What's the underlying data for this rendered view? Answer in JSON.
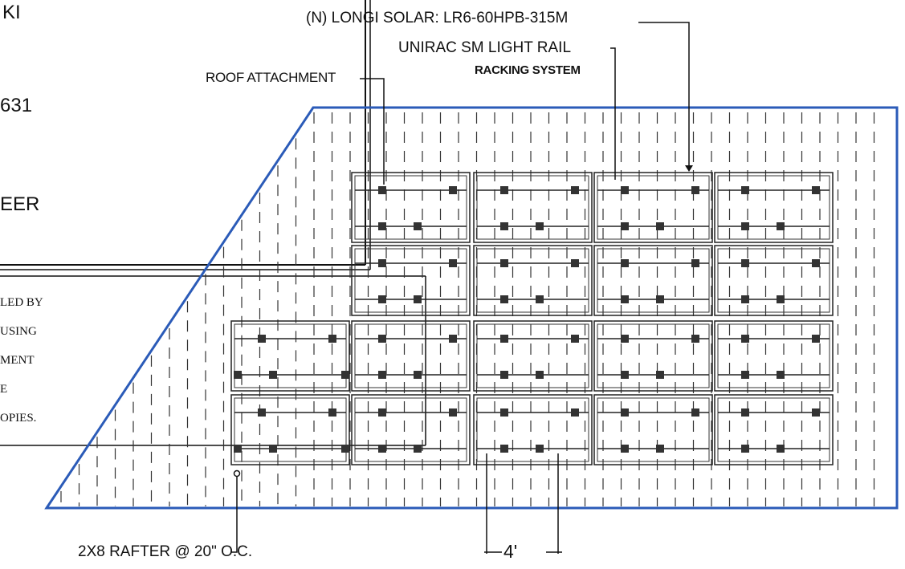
{
  "title_block": {
    "fragment_top": "KI",
    "fragment_mid": "631",
    "fragment_bottom": "EER"
  },
  "note": {
    "lines": [
      "LED BY",
      "USING",
      "MENT",
      "E",
      "OPIES."
    ]
  },
  "labels": {
    "module": "(N) LONGI SOLAR: LR6-60HPB-315M",
    "racking_line1": "UNIRAC SM LIGHT RAIL",
    "racking_line2": "RACKING SYSTEM",
    "roof_attachment": "ROOF ATTACHMENT",
    "rafter": "2X8 RAFTER @ 20\" O.C.",
    "dimension": "4'"
  },
  "colors": {
    "roof_outline": "#2b5bb8",
    "linework": "#222222",
    "clamp": "#333333"
  },
  "layout_info": {
    "module_rows": 4,
    "modules_per_row": [
      4,
      4,
      5,
      5
    ],
    "total_modules": 18
  }
}
